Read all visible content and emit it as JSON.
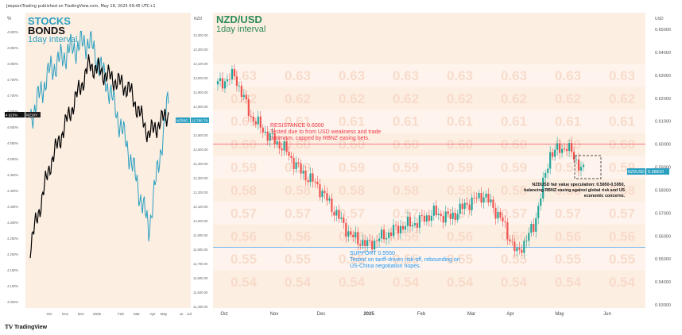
{
  "header": {
    "published": "JeepsonTrading published on TradingView.com, May 18, 2025 09:45 UTC+1"
  },
  "footer": {
    "logo_mark": "𝕋𝕍",
    "logo_text": "TradingView"
  },
  "left_panel": {
    "title_stocks": "STOCKS",
    "title_bonds": "BONDS",
    "interval": "1day interval",
    "left_axis_unit": "%",
    "right_axis_unit": "NZD",
    "yield_ticks": [
      "4.900%",
      "4.850%",
      "4.800%",
      "4.750%",
      "4.700%",
      "4.650%",
      "4.600%",
      "4.550%",
      "4.500%",
      "4.450%",
      "4.400%",
      "4.350%",
      "4.300%",
      "4.250%",
      "4.200%",
      "4.150%",
      "4.100%",
      "4.050%"
    ],
    "index_ticks": [
      "13,300.00",
      "13,200.00",
      "13,100.00",
      "13,000.00",
      "12,900.00",
      "12,800.00",
      "12,700.00",
      "12,600.00",
      "12,500.00",
      "12,400.00",
      "12,300.00",
      "12,200.00",
      "12,100.00",
      "12,000.00",
      "11,900.00",
      "11,800.00",
      "11,700.00",
      "11,600.00",
      "11,500.00",
      "11,400.00"
    ],
    "x_labels": [
      "Oct",
      "Nov",
      "Dec",
      "2025",
      "Feb",
      "Mar",
      "Apr",
      "May",
      "Ju",
      "Jul"
    ],
    "yield_badge": "4.623%",
    "yield_badge_tag": "NZ10Y",
    "index_badge_tag": "NZ50G",
    "index_badge": "12,786.78"
  },
  "main_panel": {
    "title": "NZD/USD",
    "interval": "1day interval",
    "axis_unit": "USD",
    "price_ticks": [
      "0.65000",
      "0.64000",
      "0.63000",
      "0.62000",
      "0.61000",
      "0.60000",
      "0.59000",
      "0.58000",
      "0.57000",
      "0.56000",
      "0.55000",
      "0.54000",
      "0.53000"
    ],
    "x_labels": [
      "Oct",
      "Nov",
      "Dec",
      "2025",
      "Feb",
      "Mar",
      "Apr",
      "May",
      "Jun"
    ],
    "last_tag": "NZDUSD",
    "last_price": "0.58810",
    "resistance_title": "RESISTANCE 0.6000",
    "resistance_text_1": "Tested due to from USD weakness and trade",
    "resistance_text_2": "optimism, capped by RBNZ easing bets.",
    "support_title": "SUPPORT 0.5550",
    "support_text_1": "Tested on tariff-driven risk-off, rebounding on",
    "support_text_2": "US-China negotiation hopes.",
    "note_1": "NZDUSD fair value speculation: 0.5850-0.5950,",
    "note_2": "balancing RBNZ easing against global risk and US",
    "note_3": "economic concerns.",
    "watermark_levels": [
      "0.63",
      "0.62",
      "0.61",
      "0.60",
      "0.59",
      "0.58",
      "0.57",
      "0.56",
      "0.55",
      "0.54"
    ],
    "colors": {
      "up": "#26a69a",
      "down": "#ef5350",
      "resistance": "#f23645",
      "support": "#2196f3",
      "title": "#2e8b57",
      "bg": "#fdeee2"
    }
  },
  "chart_data": [
    {
      "type": "line",
      "title": "STOCKS BONDS",
      "x": [
        "Oct",
        "Nov",
        "Dec",
        "2025",
        "Feb",
        "Mar",
        "Apr",
        "May"
      ],
      "series": [
        {
          "name": "NZ10Y",
          "axis": "left",
          "unit": "%",
          "values": [
            4.18,
            4.45,
            4.62,
            4.78,
            4.74,
            4.7,
            4.55,
            4.62
          ]
        },
        {
          "name": "NZ50G",
          "axis": "right",
          "unit": "NZD",
          "values": [
            12650,
            12980,
            13120,
            13180,
            12850,
            12420,
            11900,
            12786.78
          ]
        }
      ],
      "ylim_left": [
        4.0,
        4.93
      ],
      "ylim_right": [
        11400,
        13330
      ]
    },
    {
      "type": "line",
      "title": "NZD/USD",
      "x": [
        "Oct",
        "Nov",
        "Dec",
        "2025",
        "Feb",
        "Mar",
        "Apr",
        "May"
      ],
      "series": [
        {
          "name": "NZDUSD",
          "values": [
            0.626,
            0.603,
            0.585,
            0.561,
            0.566,
            0.571,
            0.556,
            0.5881
          ]
        }
      ],
      "ylim": [
        0.53,
        0.65
      ],
      "levels": [
        {
          "name": "RESISTANCE",
          "value": 0.6
        },
        {
          "name": "SUPPORT",
          "value": 0.555
        }
      ]
    }
  ]
}
